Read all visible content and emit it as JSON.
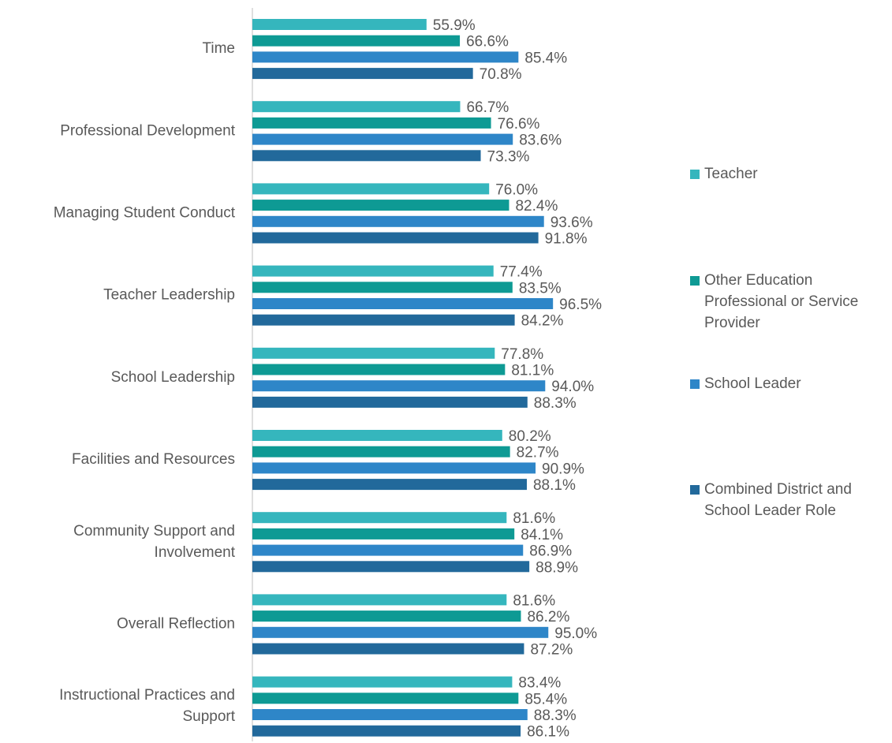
{
  "chart_data": {
    "type": "bar",
    "orientation": "horizontal",
    "categories": [
      "Time",
      "Professional Development",
      "Managing Student Conduct",
      "Teacher Leadership",
      "School Leadership",
      "Facilities and Resources",
      "Community Support and Involvement",
      "Overall Reflection",
      "Instructional Practices and Support"
    ],
    "xlim": [
      0,
      100
    ],
    "legend": "right",
    "series": [
      {
        "name": "Teacher",
        "color": "#35b6bd",
        "values": [
          55.9,
          66.7,
          76.0,
          77.4,
          77.8,
          80.2,
          81.6,
          81.6,
          83.4
        ],
        "value_labels": [
          "55.9%",
          "66.7%",
          "76.0%",
          "77.4%",
          "77.8%",
          "80.2%",
          "81.6%",
          "81.6%",
          "83.4%"
        ]
      },
      {
        "name": "Other Education Professional or Service Provider",
        "color": "#0e9a94",
        "values": [
          66.6,
          76.6,
          82.4,
          83.5,
          81.1,
          82.7,
          84.1,
          86.2,
          85.4
        ],
        "value_labels": [
          "66.6%",
          "76.6%",
          "82.4%",
          "83.5%",
          "81.1%",
          "82.7%",
          "84.1%",
          "86.2%",
          "85.4%"
        ]
      },
      {
        "name": "School Leader",
        "color": "#2e86c8",
        "values": [
          85.4,
          83.6,
          93.6,
          96.5,
          94.0,
          90.9,
          86.9,
          95.0,
          88.3
        ],
        "value_labels": [
          "85.4%",
          "83.6%",
          "93.6%",
          "96.5%",
          "94.0%",
          "90.9%",
          "86.9%",
          "95.0%",
          "88.3%"
        ]
      },
      {
        "name": "Combined District and School Leader Role",
        "color": "#22699b",
        "values": [
          70.8,
          73.3,
          91.8,
          84.2,
          88.3,
          88.1,
          88.9,
          87.2,
          86.1
        ],
        "value_labels": [
          "70.8%",
          "73.3%",
          "91.8%",
          "84.2%",
          "88.3%",
          "88.1%",
          "88.9%",
          "87.2%",
          "86.1%"
        ]
      }
    ]
  }
}
